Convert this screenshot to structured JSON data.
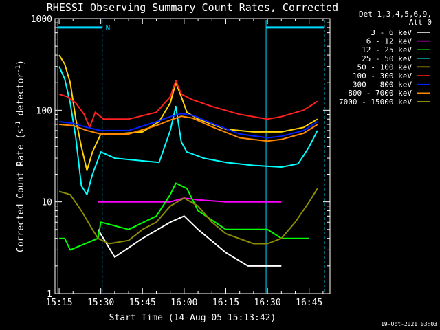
{
  "colors": {
    "background": "#000000",
    "axes": "#ffffff",
    "markers": "#00d8ff"
  },
  "chart_data": {
    "type": "line",
    "title": "RHESSI Observing Summary Count Rates, Corrected",
    "xlabel": "Start Time (14-Aug-05 15:13:42)",
    "ylabel_parts": [
      "Corrected Count Rate (s",
      "-1",
      " detector",
      "-1",
      ")"
    ],
    "y_scale": "log",
    "ylim": [
      1,
      1000
    ],
    "xlim_minutes": [
      -1.5,
      97.5
    ],
    "x_ticks": [
      {
        "label": "15:15",
        "minutes": 0
      },
      {
        "label": "15:30",
        "minutes": 15
      },
      {
        "label": "15:45",
        "minutes": 30
      },
      {
        "label": "16:00",
        "minutes": 45
      },
      {
        "label": "16:15",
        "minutes": 60
      },
      {
        "label": "16:30",
        "minutes": 75
      },
      {
        "label": "16:45",
        "minutes": 90
      }
    ],
    "y_ticks": [
      {
        "label": "1",
        "value": 1
      },
      {
        "label": "10",
        "value": 10
      },
      {
        "label": "100",
        "value": 100
      },
      {
        "label": "1000",
        "value": 1000
      }
    ],
    "legend_header": [
      "Det 1,3,4,5,6,9,",
      "Att 0"
    ],
    "legend_position": "right",
    "marker_label": "N",
    "markers": {
      "bar_y_value": 800,
      "night_segments": [
        [
          -0.5,
          15.5
        ],
        [
          74.5,
          95.5
        ]
      ],
      "dashed_lines_minutes": [
        15.5,
        95.5
      ],
      "solid_lines_minutes": [
        -0.5,
        74.5
      ]
    },
    "series": [
      {
        "name": "3 - 6 keV",
        "color": "#ffffff",
        "points": [
          [
            14,
            5
          ],
          [
            20,
            2.5
          ],
          [
            30,
            4
          ],
          [
            40,
            6
          ],
          [
            45,
            7
          ],
          [
            50,
            5
          ],
          [
            60,
            2.8
          ],
          [
            68,
            2
          ],
          [
            80,
            2
          ]
        ]
      },
      {
        "name": "6 - 12 keV",
        "color": "#ff00ff",
        "points": [
          [
            14,
            10
          ],
          [
            20,
            10
          ],
          [
            30,
            10
          ],
          [
            40,
            10
          ],
          [
            45,
            11
          ],
          [
            50,
            10.5
          ],
          [
            60,
            10
          ],
          [
            70,
            10
          ],
          [
            80,
            10
          ]
        ]
      },
      {
        "name": "12 - 25 keV",
        "color": "#00ff00",
        "points": [
          [
            0,
            4
          ],
          [
            2,
            4
          ],
          [
            4,
            3
          ],
          [
            14,
            4
          ],
          [
            15,
            6
          ],
          [
            25,
            5
          ],
          [
            35,
            7
          ],
          [
            40,
            12
          ],
          [
            42,
            16
          ],
          [
            46,
            14
          ],
          [
            50,
            8
          ],
          [
            60,
            5
          ],
          [
            70,
            5
          ],
          [
            75,
            5
          ],
          [
            80,
            4
          ],
          [
            90,
            4
          ]
        ]
      },
      {
        "name": "25 - 50 keV",
        "color": "#00ffff",
        "points": [
          [
            0,
            300
          ],
          [
            2,
            220
          ],
          [
            4,
            120
          ],
          [
            6,
            50
          ],
          [
            8,
            15
          ],
          [
            10,
            12
          ],
          [
            12,
            20
          ],
          [
            15,
            35
          ],
          [
            20,
            30
          ],
          [
            30,
            28
          ],
          [
            36,
            27
          ],
          [
            40,
            60
          ],
          [
            42,
            110
          ],
          [
            44,
            45
          ],
          [
            46,
            35
          ],
          [
            52,
            30
          ],
          [
            60,
            27
          ],
          [
            70,
            25
          ],
          [
            80,
            24
          ],
          [
            86,
            26
          ],
          [
            88,
            32
          ],
          [
            90,
            40
          ],
          [
            93,
            60
          ]
        ]
      },
      {
        "name": "50 - 100 keV",
        "color": "#ffd400",
        "points": [
          [
            0,
            400
          ],
          [
            2,
            320
          ],
          [
            4,
            200
          ],
          [
            6,
            80
          ],
          [
            8,
            40
          ],
          [
            10,
            22
          ],
          [
            12,
            35
          ],
          [
            15,
            55
          ],
          [
            20,
            55
          ],
          [
            30,
            58
          ],
          [
            36,
            75
          ],
          [
            40,
            120
          ],
          [
            42,
            200
          ],
          [
            44,
            140
          ],
          [
            46,
            95
          ],
          [
            50,
            80
          ],
          [
            60,
            62
          ],
          [
            70,
            58
          ],
          [
            80,
            58
          ],
          [
            88,
            65
          ],
          [
            93,
            80
          ]
        ]
      },
      {
        "name": "100 - 300 keV",
        "color": "#ff2020",
        "points": [
          [
            0,
            150
          ],
          [
            3,
            140
          ],
          [
            6,
            120
          ],
          [
            9,
            90
          ],
          [
            11,
            65
          ],
          [
            13,
            95
          ],
          [
            16,
            80
          ],
          [
            25,
            80
          ],
          [
            35,
            95
          ],
          [
            40,
            140
          ],
          [
            42,
            210
          ],
          [
            44,
            150
          ],
          [
            48,
            130
          ],
          [
            55,
            110
          ],
          [
            65,
            90
          ],
          [
            75,
            80
          ],
          [
            80,
            85
          ],
          [
            88,
            100
          ],
          [
            93,
            125
          ]
        ]
      },
      {
        "name": "300 - 800 keV",
        "color": "#0020ff",
        "points": [
          [
            0,
            75
          ],
          [
            5,
            72
          ],
          [
            10,
            65
          ],
          [
            15,
            60
          ],
          [
            25,
            60
          ],
          [
            35,
            75
          ],
          [
            40,
            85
          ],
          [
            44,
            92
          ],
          [
            48,
            88
          ],
          [
            55,
            72
          ],
          [
            65,
            55
          ],
          [
            75,
            50
          ],
          [
            80,
            52
          ],
          [
            88,
            60
          ],
          [
            93,
            75
          ]
        ]
      },
      {
        "name": "800 - 7000 keV",
        "color": "#ff8800",
        "points": [
          [
            0,
            70
          ],
          [
            5,
            68
          ],
          [
            10,
            60
          ],
          [
            15,
            55
          ],
          [
            25,
            55
          ],
          [
            35,
            68
          ],
          [
            40,
            78
          ],
          [
            44,
            86
          ],
          [
            48,
            82
          ],
          [
            55,
            66
          ],
          [
            65,
            50
          ],
          [
            75,
            46
          ],
          [
            80,
            48
          ],
          [
            88,
            56
          ],
          [
            93,
            70
          ]
        ]
      },
      {
        "name": "7000 - 15000 keV",
        "color": "#8b8b00",
        "points": [
          [
            0,
            13
          ],
          [
            4,
            12
          ],
          [
            8,
            8
          ],
          [
            12,
            5
          ],
          [
            14,
            4
          ],
          [
            18,
            3.5
          ],
          [
            25,
            3.8
          ],
          [
            30,
            5
          ],
          [
            35,
            6
          ],
          [
            40,
            9
          ],
          [
            45,
            11
          ],
          [
            50,
            9
          ],
          [
            55,
            6
          ],
          [
            60,
            4.5
          ],
          [
            70,
            3.5
          ],
          [
            75,
            3.5
          ],
          [
            80,
            4
          ],
          [
            85,
            6
          ],
          [
            90,
            10
          ],
          [
            93,
            14
          ]
        ]
      }
    ]
  },
  "footer": {
    "timestamp": "19-Oct-2021 03:03"
  }
}
